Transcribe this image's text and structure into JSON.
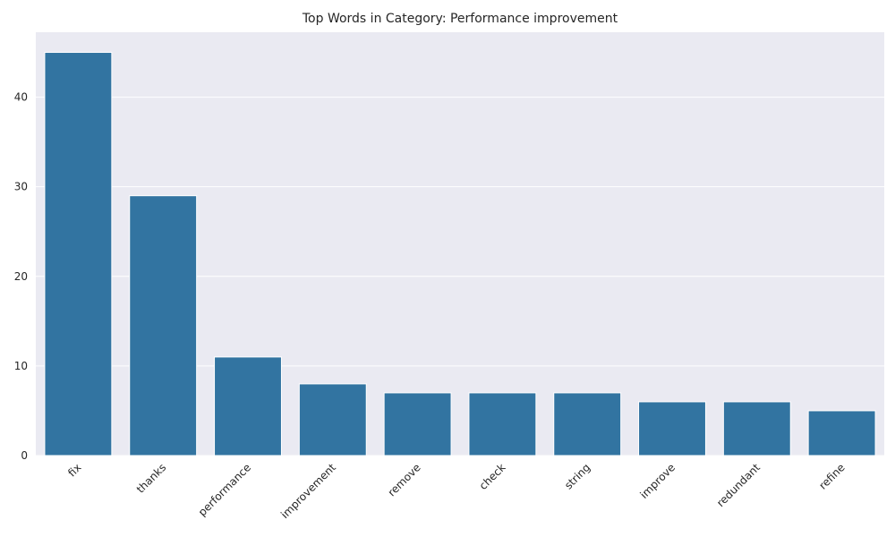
{
  "chart_data": {
    "type": "bar",
    "title": "Top Words in Category: Performance improvement",
    "xlabel": "",
    "ylabel": "",
    "categories": [
      "fix",
      "thanks",
      "performance",
      "improvement",
      "remove",
      "check",
      "string",
      "improve",
      "redundant",
      "refine"
    ],
    "values": [
      45,
      29,
      11,
      8,
      7,
      7,
      7,
      6,
      6,
      5
    ],
    "ylim": [
      0,
      47.25
    ],
    "yticks": [
      "0",
      "10",
      "20",
      "30",
      "40"
    ],
    "grid": true,
    "colors": {
      "bar": "#3274a1",
      "background": "#eaeaf2",
      "grid": "#ffffff"
    }
  }
}
